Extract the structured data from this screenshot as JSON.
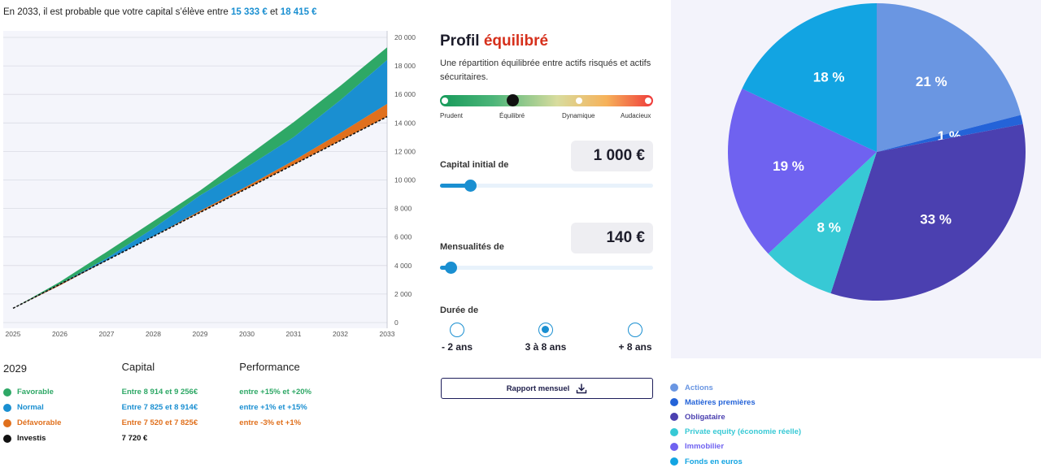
{
  "summary": {
    "prefix": "En 2033, il est probable que votre capital s’élève entre",
    "low": "15 333 €",
    "middle": "et",
    "high": "18 415 €"
  },
  "chart_data": {
    "type": "area",
    "x": [
      2025,
      2026,
      2027,
      2028,
      2029,
      2030,
      2031,
      2032,
      2033
    ],
    "xlim": [
      2025,
      2033
    ],
    "ylim": [
      0,
      20000
    ],
    "y_ticks": [
      "0",
      "2 000",
      "4 000",
      "6 000",
      "8 000",
      "10 000",
      "12 000",
      "14 000",
      "16 000",
      "18 000",
      "20 000"
    ],
    "x_ticks": [
      "2025",
      "2026",
      "2027",
      "2028",
      "2029",
      "2030",
      "2031",
      "2032",
      "2033"
    ],
    "grid": true,
    "series": [
      {
        "name": "Favorable",
        "color": "#2ea866",
        "values": [
          1000,
          2850,
          4950,
          7100,
          9256,
          11650,
          14050,
          16600,
          19300
        ]
      },
      {
        "name": "Normal",
        "color": "#1a8fd1",
        "values": [
          1000,
          2700,
          4500,
          6600,
          8914,
          10900,
          13000,
          15600,
          18415
        ]
      },
      {
        "name": "Défavorable",
        "color": "#e0701d",
        "values": [
          1000,
          2600,
          4350,
          6050,
          7825,
          9550,
          11350,
          13300,
          15333
        ]
      },
      {
        "name": "Investis",
        "color": "#000000",
        "values": [
          1000,
          2680,
          4360,
          6040,
          7720,
          9400,
          11080,
          12760,
          14440
        ]
      }
    ]
  },
  "table": {
    "year": "2029",
    "capital_header": "Capital",
    "performance_header": "Performance",
    "rows": [
      {
        "name": "Favorable",
        "capital": "Entre 8 914 et 9 256€",
        "performance": "entre +15% et +20%",
        "color": "#2ea866"
      },
      {
        "name": "Normal",
        "capital": "Entre 7 825 et 8 914€",
        "performance": "entre +1% et +15%",
        "color": "#1a8fd1"
      },
      {
        "name": "Défavorable",
        "capital": "Entre 7 520 et 7 825€",
        "performance": "entre -3% et +1%",
        "color": "#e0701d"
      },
      {
        "name": "Investis",
        "capital": "7 720 €",
        "performance": "",
        "color": "#111111"
      }
    ]
  },
  "profile": {
    "title_prefix": "Profil",
    "title_accent": "équilibré",
    "description": "Une répartition équilibrée entre actifs risqués et actifs sécuritaires.",
    "risk_levels": [
      "Prudent",
      "Équilibré",
      "Dynamique",
      "Audacieux"
    ],
    "risk_selected": "Équilibré"
  },
  "capital": {
    "label": "Capital initial de",
    "value": "1 000 €",
    "slider_fraction": 0.14
  },
  "monthly": {
    "label": "Mensualités de",
    "value": "140 €",
    "slider_fraction": 0.05
  },
  "duration": {
    "label": "Durée de",
    "options": [
      "- 2 ans",
      "3 à 8 ans",
      "+ 8 ans"
    ],
    "selected": "3 à 8 ans"
  },
  "report": {
    "label": "Rapport mensuel",
    "icon": "download-icon"
  },
  "pie": {
    "type": "pie",
    "slices": [
      {
        "name": "Actions",
        "value": 21,
        "label": "21 %",
        "color": "#6a96e2"
      },
      {
        "name": "Matières premières",
        "value": 1,
        "label": "1 %",
        "color": "#2463d8"
      },
      {
        "name": "Obligataire",
        "value": 33,
        "label": "33 %",
        "color": "#4b40b0"
      },
      {
        "name": "Private equity (économie réelle)",
        "value": 8,
        "label": "8 %",
        "color": "#37c9d5"
      },
      {
        "name": "Immobilier",
        "value": 19,
        "label": "19 %",
        "color": "#6f62f0"
      },
      {
        "name": "Fonds en euros",
        "value": 18,
        "label": "18 %",
        "color": "#12a4e2"
      }
    ]
  }
}
